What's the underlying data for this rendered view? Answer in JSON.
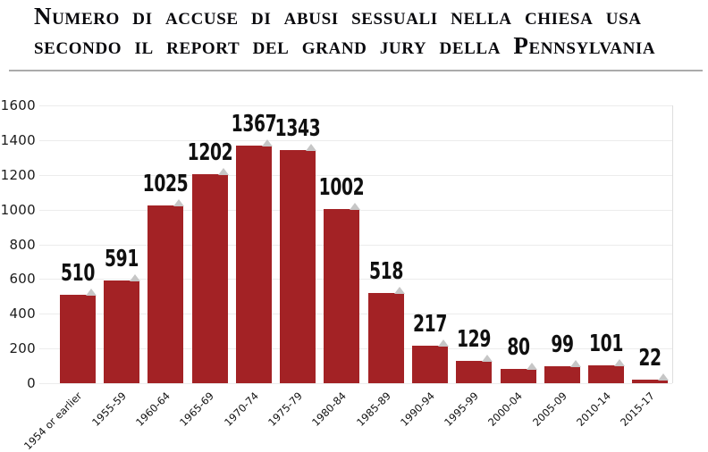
{
  "title": {
    "line1": "Numero di accuse di abusi sessuali nella chiesa usa",
    "line2": "secondo il report del grand jury della Pennsylvania"
  },
  "chart_data": {
    "type": "bar",
    "title": "Numero di accuse di abusi sessuali nella chiesa USA secondo il report del grand jury della Pennsylvania",
    "categories": [
      "1954 or earlier",
      "1955-59",
      "1960-64",
      "1965-69",
      "1970-74",
      "1975-79",
      "1980-84",
      "1985-89",
      "1990-94",
      "1995-99",
      "2000-04",
      "2005-09",
      "2010-14",
      "2015-17"
    ],
    "values": [
      510,
      591,
      1025,
      1202,
      1367,
      1343,
      1002,
      518,
      217,
      129,
      80,
      99,
      101,
      22
    ],
    "xlabel": "",
    "ylabel": "",
    "ylim": [
      0,
      1600
    ],
    "yticks": [
      0,
      200,
      400,
      600,
      800,
      1000,
      1200,
      1400,
      1600
    ],
    "grid": true,
    "legend": false,
    "value_labels": true,
    "bar_color": "#a32225",
    "marker_color": "#c6c6c6",
    "gridline_color": "#ececec"
  },
  "colors": {
    "title_text": "#0a0a0e",
    "separator": "#ababab",
    "axis_text": "#1c1c1c",
    "background": "#ffffff"
  }
}
